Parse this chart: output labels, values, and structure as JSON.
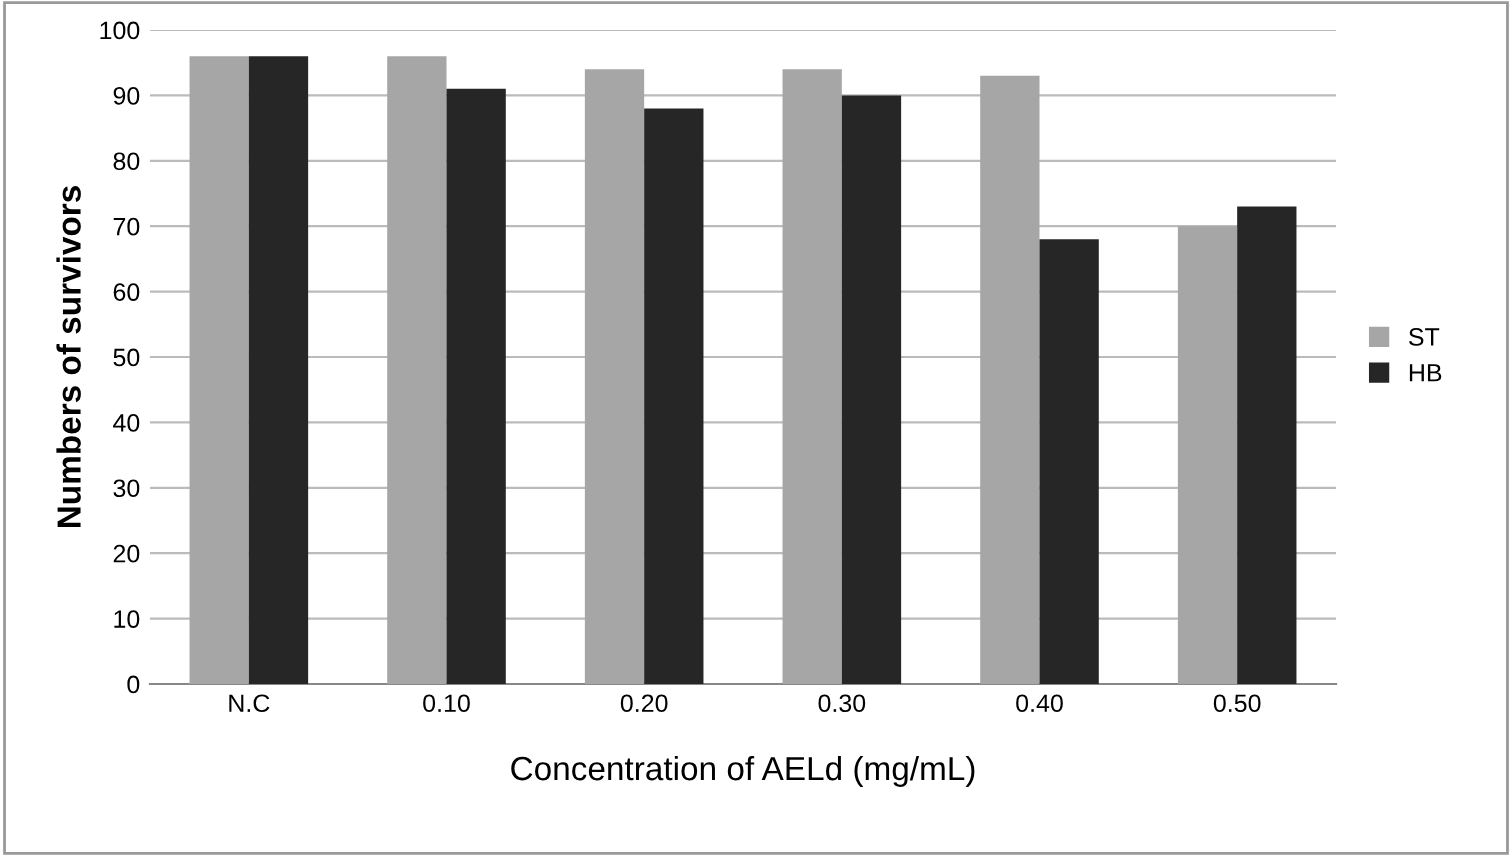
{
  "chart_data": {
    "type": "bar",
    "xlabel": "Concentration of AELd (mg/mL)",
    "ylabel": "Numbers of survivors",
    "categories": [
      "N.C",
      "0.10",
      "0.20",
      "0.30",
      "0.40",
      "0.50"
    ],
    "series": [
      {
        "name": "ST",
        "color": "#a6a6a6",
        "values": [
          96,
          96,
          94,
          94,
          93,
          70
        ]
      },
      {
        "name": "HB",
        "color": "#262626",
        "values": [
          96,
          91,
          88,
          90,
          68,
          73
        ]
      }
    ],
    "ylim": [
      0,
      100
    ],
    "yticks": [
      0,
      10,
      20,
      30,
      40,
      50,
      60,
      70,
      80,
      90,
      100
    ],
    "grid": "y",
    "legend": "right"
  }
}
